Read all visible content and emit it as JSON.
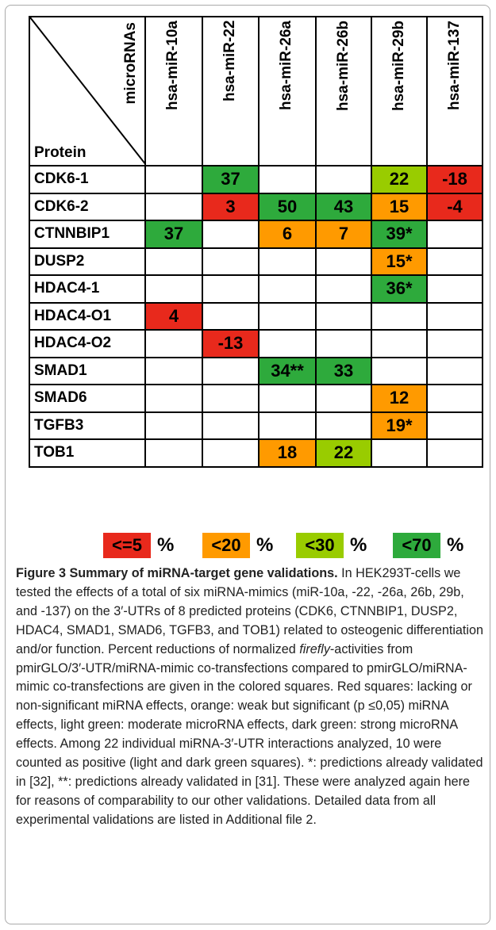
{
  "table": {
    "corner_columns": "microRNAs",
    "corner_rows": "Protein",
    "columns": [
      "hsa-miR-10a",
      "hsa-miR-22",
      "hsa-miR-26a",
      "hsa-miR-26b",
      "hsa-miR-29b",
      "hsa-miR-137"
    ],
    "rows": [
      {
        "label": "CDK6-1",
        "cells": [
          null,
          {
            "text": "37",
            "color": "#2eaa3c"
          },
          null,
          null,
          {
            "text": "22",
            "color": "#99cc00"
          },
          {
            "text": "-18",
            "color": "#e8291c"
          }
        ]
      },
      {
        "label": "CDK6-2",
        "cells": [
          null,
          {
            "text": "3",
            "color": "#e8291c"
          },
          {
            "text": "50",
            "color": "#2eaa3c"
          },
          {
            "text": "43",
            "color": "#2eaa3c"
          },
          {
            "text": "15",
            "color": "#ff9a00"
          },
          {
            "text": "-4",
            "color": "#e8291c"
          }
        ]
      },
      {
        "label": "CTNNBIP1",
        "cells": [
          {
            "text": "37",
            "color": "#2eaa3c"
          },
          null,
          {
            "text": "6",
            "color": "#ff9a00"
          },
          {
            "text": "7",
            "color": "#ff9a00"
          },
          {
            "text": "39*",
            "color": "#2eaa3c"
          },
          null
        ]
      },
      {
        "label": "DUSP2",
        "cells": [
          null,
          null,
          null,
          null,
          {
            "text": "15*",
            "color": "#ff9a00"
          },
          null
        ]
      },
      {
        "label": "HDAC4-1",
        "cells": [
          null,
          null,
          null,
          null,
          {
            "text": "36*",
            "color": "#2eaa3c"
          },
          null
        ]
      },
      {
        "label": "HDAC4-O1",
        "cells": [
          {
            "text": "4",
            "color": "#e8291c"
          },
          null,
          null,
          null,
          null,
          null
        ]
      },
      {
        "label": "HDAC4-O2",
        "cells": [
          null,
          {
            "text": "-13",
            "color": "#e8291c"
          },
          null,
          null,
          null,
          null
        ]
      },
      {
        "label": "SMAD1",
        "cells": [
          null,
          null,
          {
            "text": "34**",
            "color": "#2eaa3c"
          },
          {
            "text": "33",
            "color": "#2eaa3c"
          },
          null,
          null
        ]
      },
      {
        "label": "SMAD6",
        "cells": [
          null,
          null,
          null,
          null,
          {
            "text": "12",
            "color": "#ff9a00"
          },
          null
        ]
      },
      {
        "label": "TGFB3",
        "cells": [
          null,
          null,
          null,
          null,
          {
            "text": "19*",
            "color": "#ff9a00"
          },
          null
        ]
      },
      {
        "label": "TOB1",
        "cells": [
          null,
          null,
          {
            "text": "18",
            "color": "#ff9a00"
          },
          {
            "text": "22",
            "color": "#99cc00"
          },
          null,
          null
        ]
      }
    ]
  },
  "legend": {
    "unit": "%",
    "items": [
      {
        "label": "<=5",
        "color": "#e8291c"
      },
      {
        "label": "<20",
        "color": "#ff9a00"
      },
      {
        "label": "<30",
        "color": "#99cc00"
      },
      {
        "label": "<70",
        "color": "#2eaa3c"
      }
    ]
  },
  "caption": {
    "title": "Figure 3 Summary of miRNA-target gene validations.",
    "text_before": " In HEK293T-cells we tested the effects of a total of six miRNA-mimics (miR-10a, -22, -26a, 26b, 29b, and -137) on the 3′-UTRs of 8 predicted proteins (CDK6, CTNNBIP1, DUSP2, HDAC4, SMAD1, SMAD6, TGFB3, and TOB1) related to osteogenic differentiation and/or function. Percent reductions of normalized ",
    "italic": "firefly",
    "text_after": "-activities from pmirGLO/3′-UTR/miRNA-mimic co-transfections compared to pmirGLO/miRNA-mimic co-transfections are given in the colored squares. Red squares: lacking or non-significant miRNA effects, orange: weak but significant (p ≤0,05) miRNA effects, light green: moderate microRNA effects, dark green: strong microRNA effects. Among 22 individual miRNA-3′-UTR interactions analyzed, 10 were counted as positive (light and dark green squares). *: predictions already validated in [32], **: predictions already validated in [31]. These were analyzed again here for reasons of comparability to our other validations. Detailed data from all experimental validations are listed in Additional file 2."
  }
}
